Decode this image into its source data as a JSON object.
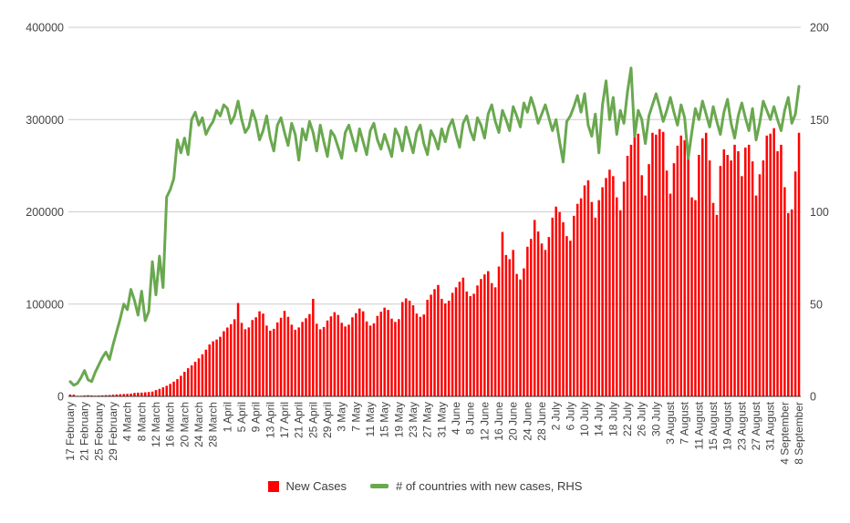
{
  "chart_data": {
    "type": "combo",
    "title": "",
    "grid": true,
    "legend_position": "bottom",
    "label_every": 4,
    "x_tick_labels": [
      "17 February",
      "21 February",
      "25 February",
      "29 February",
      "4 March",
      "8 March",
      "12 March",
      "16 March",
      "20 March",
      "24 March",
      "28 March",
      "1 April",
      "5 April",
      "9 April",
      "13 April",
      "17 April",
      "21 April",
      "25 April",
      "29 April",
      "3 May",
      "7 May",
      "11 May",
      "15 May",
      "19 May",
      "23 May",
      "27 May",
      "31 May",
      "4 June",
      "8 June",
      "12 June",
      "16 June",
      "20 June",
      "24 June",
      "28 June",
      "2 July",
      "6 July",
      "10 July",
      "14 July",
      "18 July",
      "22 July",
      "26 July",
      "30 July",
      "3 August",
      "7 August",
      "11 August",
      "15 August",
      "19 August",
      "23 August",
      "27 August",
      "31 August",
      "4 September",
      "8 September"
    ],
    "left_axis": {
      "range": [
        0,
        400000
      ],
      "ticks": [
        0,
        100000,
        200000,
        300000,
        400000
      ]
    },
    "right_axis": {
      "range": [
        0,
        200
      ],
      "ticks": [
        0,
        50,
        100,
        150,
        200
      ]
    },
    "series": [
      {
        "name": "New Cases",
        "type": "bar",
        "axis": "left",
        "color": "#ff0000",
        "values": [
          1900,
          1750,
          600,
          650,
          950,
          1250,
          1000,
          750,
          900,
          1100,
          1350,
          1450,
          1750,
          2100,
          2300,
          2500,
          2700,
          2950,
          3700,
          4000,
          4050,
          4350,
          4650,
          5200,
          6800,
          8100,
          9800,
          11500,
          13500,
          16000,
          18700,
          22300,
          26600,
          30500,
          33600,
          37500,
          41200,
          45600,
          50600,
          56200,
          59700,
          61600,
          64600,
          70600,
          74600,
          78200,
          83600,
          101200,
          79600,
          72700,
          74700,
          82700,
          85700,
          92200,
          89700,
          76700,
          71200,
          73200,
          80200,
          85200,
          92700,
          86200,
          77700,
          72200,
          74700,
          80700,
          84700,
          89200,
          105700,
          78700,
          72700,
          75200,
          82200,
          86700,
          91200,
          88200,
          79700,
          75700,
          77700,
          85700,
          90200,
          95200,
          92200,
          81200,
          76700,
          79200,
          87200,
          91700,
          96200,
          93700,
          84200,
          80700,
          83700,
          102200,
          106200,
          103700,
          98700,
          89700,
          86200,
          88700,
          104700,
          110200,
          116200,
          120700,
          105700,
          100700,
          103700,
          112200,
          118200,
          124200,
          128700,
          113700,
          108700,
          111200,
          120200,
          127200,
          132200,
          135700,
          122700,
          118200,
          140700,
          178200,
          153200,
          148700,
          158700,
          132700,
          126700,
          138700,
          162200,
          170700,
          191200,
          178700,
          165700,
          158700,
          172700,
          193700,
          205700,
          199700,
          188700,
          173700,
          168700,
          195700,
          208700,
          214700,
          228700,
          234200,
          210700,
          193700,
          212700,
          226700,
          236700,
          245700,
          238700,
          215700,
          201700,
          232700,
          260700,
          272700,
          281700,
          284700,
          239700,
          217700,
          251700,
          285700,
          283700,
          289700,
          286700,
          244700,
          219700,
          252700,
          271700,
          282700,
          277700,
          259700,
          215700,
          212700,
          261700,
          279700,
          285700,
          255700,
          209700,
          196700,
          249700,
          267700,
          261700,
          255700,
          272700,
          265700,
          238700,
          269700,
          272700,
          254700,
          217700,
          240700,
          255700,
          282700,
          284700,
          290700,
          265700,
          272700,
          226700,
          198700,
          202700,
          243700,
          285700
        ]
      },
      {
        "name": "# of countries with new cases, RHS",
        "type": "line",
        "axis": "right",
        "color": "#6aa84f",
        "values": [
          8,
          6,
          7,
          10,
          14,
          9,
          8,
          13,
          17,
          21,
          24,
          20,
          28,
          35,
          42,
          50,
          47,
          58,
          52,
          44,
          57,
          41,
          46,
          73,
          55,
          76,
          59,
          108,
          112,
          118,
          139,
          132,
          140,
          131,
          150,
          154,
          147,
          151,
          142,
          146,
          149,
          155,
          152,
          158,
          156,
          148,
          152,
          160,
          150,
          143,
          146,
          155,
          149,
          139,
          144,
          152,
          140,
          133,
          147,
          151,
          143,
          136,
          148,
          142,
          128,
          145,
          139,
          149,
          143,
          133,
          147,
          138,
          130,
          144,
          141,
          135,
          129,
          143,
          147,
          140,
          133,
          145,
          138,
          131,
          144,
          148,
          139,
          134,
          142,
          136,
          130,
          145,
          141,
          133,
          146,
          139,
          132,
          143,
          147,
          137,
          131,
          144,
          140,
          134,
          145,
          138,
          146,
          150,
          142,
          135,
          148,
          152,
          144,
          139,
          151,
          147,
          140,
          153,
          158,
          149,
          143,
          155,
          150,
          144,
          157,
          152,
          146,
          159,
          154,
          162,
          156,
          148,
          153,
          158,
          151,
          144,
          150,
          138,
          127,
          149,
          152,
          157,
          163,
          154,
          164,
          147,
          141,
          153,
          132,
          158,
          171,
          150,
          162,
          142,
          155,
          148,
          165,
          178,
          141,
          155,
          150,
          137,
          152,
          158,
          164,
          157,
          149,
          155,
          162,
          154,
          147,
          158,
          151,
          129,
          143,
          156,
          150,
          160,
          153,
          146,
          157,
          149,
          142,
          154,
          161,
          148,
          140,
          152,
          159,
          151,
          144,
          156,
          139,
          148,
          160,
          155,
          150,
          157,
          150,
          144,
          155,
          162,
          148,
          153,
          168
        ]
      }
    ]
  },
  "legend": {
    "items": [
      {
        "label": "New Cases",
        "color": "#ff0000",
        "marker": "square"
      },
      {
        "label": "# of countries with new cases, RHS",
        "color": "#6aa84f",
        "marker": "dash"
      }
    ]
  },
  "style": {
    "gridline_color": "#cccccc",
    "axis_line_color": "#333333",
    "label_color": "#444444",
    "background": "#ffffff"
  }
}
